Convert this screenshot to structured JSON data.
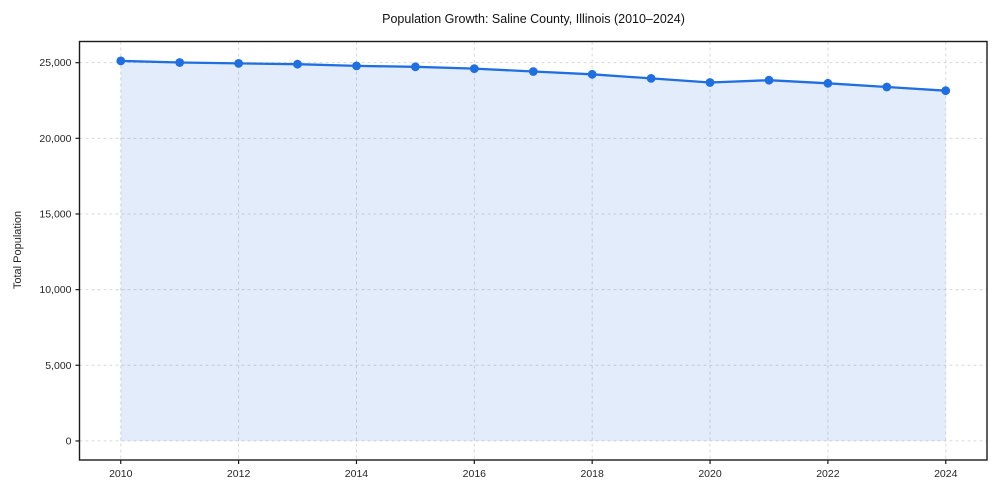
{
  "chart_data": {
    "type": "area",
    "title": "Population Growth: Saline County, Illinois (2010–2024)",
    "xlabel": "",
    "ylabel": "Total Population",
    "x": [
      2010,
      2011,
      2012,
      2013,
      2014,
      2015,
      2016,
      2017,
      2018,
      2019,
      2020,
      2021,
      2022,
      2023,
      2024
    ],
    "series": [
      {
        "name": "Total Population",
        "values": [
          25120,
          25010,
          24950,
          24900,
          24790,
          24730,
          24610,
          24420,
          24230,
          23960,
          23690,
          23840,
          23640,
          23390,
          23150
        ]
      }
    ],
    "xticks": {
      "values": [
        2010,
        2012,
        2014,
        2016,
        2018,
        2020,
        2022,
        2024
      ],
      "labels": [
        "2010",
        "2012",
        "2014",
        "2016",
        "2018",
        "2020",
        "2022",
        "2024"
      ]
    },
    "yticks": {
      "values": [
        0,
        5000,
        10000,
        15000,
        20000,
        25000
      ],
      "labels": [
        "0",
        "5,000",
        "10,000",
        "15,000",
        "20,000",
        "25,000"
      ]
    },
    "xlim": [
      2009.3,
      2024.7
    ],
    "ylim": [
      -1260,
      26400
    ],
    "grid": true,
    "legend": "none",
    "colors": {
      "line": "#1f6fe0",
      "marker": "#1f6fe0",
      "fill": "rgba(31, 111, 224, 0.13)",
      "grid": "#d8d8d8",
      "spine": "#1a1a1a",
      "tick_text": "#262626",
      "title_text": "#111111"
    }
  }
}
